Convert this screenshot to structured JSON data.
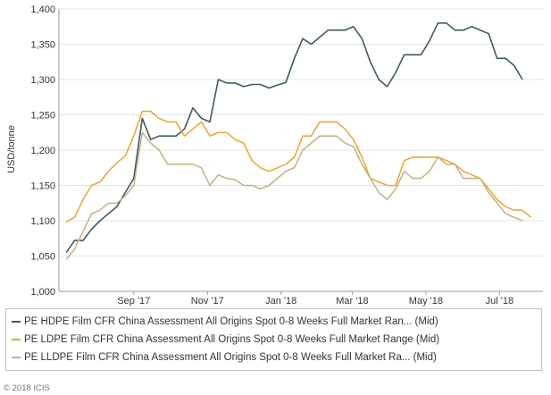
{
  "chart_data": {
    "type": "line",
    "ylabel": "USD/tonne",
    "ylim": [
      1000,
      1400
    ],
    "yticks": [
      1000,
      1050,
      1100,
      1150,
      1200,
      1250,
      1300,
      1350,
      1400
    ],
    "ytick_labels": [
      "1,000",
      "1,050",
      "1,100",
      "1,150",
      "1,200",
      "1,250",
      "1,300",
      "1,350",
      "1,400"
    ],
    "xlim": [
      "2017-07-01",
      "2018-08-06"
    ],
    "xticks": [
      {
        "date": "2017-09-01",
        "label": "Sep '17"
      },
      {
        "date": "2017-11-01",
        "label": "Nov '17"
      },
      {
        "date": "2018-01-01",
        "label": "Jan '18"
      },
      {
        "date": "2018-03-01",
        "label": "Mar '18"
      },
      {
        "date": "2018-05-01",
        "label": "May '18"
      },
      {
        "date": "2018-07-01",
        "label": "Jul '18"
      }
    ],
    "grid": "horizontal",
    "legend_position": "bottom",
    "x": [
      "2017-07-07",
      "2017-07-14",
      "2017-07-21",
      "2017-07-28",
      "2017-08-04",
      "2017-08-11",
      "2017-08-18",
      "2017-08-25",
      "2017-09-01",
      "2017-09-08",
      "2017-09-15",
      "2017-09-22",
      "2017-09-29",
      "2017-10-06",
      "2017-10-13",
      "2017-10-20",
      "2017-10-27",
      "2017-11-03",
      "2017-11-10",
      "2017-11-17",
      "2017-11-24",
      "2017-12-01",
      "2017-12-08",
      "2017-12-15",
      "2017-12-22",
      "2017-12-29",
      "2018-01-05",
      "2018-01-12",
      "2018-01-19",
      "2018-01-26",
      "2018-02-02",
      "2018-02-09",
      "2018-02-16",
      "2018-02-23",
      "2018-03-02",
      "2018-03-09",
      "2018-03-16",
      "2018-03-23",
      "2018-03-30",
      "2018-04-06",
      "2018-04-13",
      "2018-04-20",
      "2018-04-27",
      "2018-05-04",
      "2018-05-11",
      "2018-05-18",
      "2018-05-25",
      "2018-06-01",
      "2018-06-08",
      "2018-06-15",
      "2018-06-22",
      "2018-06-29",
      "2018-07-06",
      "2018-07-13",
      "2018-07-20",
      "2018-07-27"
    ],
    "series": [
      {
        "name": "PE HDPE Film CFR China Assessment All Origins Spot 0-8 Weeks Full Market Ran... (Mid)",
        "color": "#3d5a63",
        "values": [
          1055,
          1072,
          1072,
          1088,
          1100,
          1110,
          1120,
          1140,
          1160,
          1245,
          1215,
          1220,
          1220,
          1220,
          1230,
          1260,
          1245,
          1240,
          1300,
          1295,
          1295,
          1290,
          1293,
          1293,
          1288,
          1292,
          1296,
          1330,
          1358,
          1350,
          1360,
          1370,
          1370,
          1370,
          1375,
          1358,
          1325,
          1300,
          1290,
          1310,
          1335,
          1335,
          1335,
          1355,
          1380,
          1380,
          1370,
          1370,
          1375,
          1370,
          1365,
          1330,
          1330,
          1320,
          1300,
          null
        ]
      },
      {
        "name": "PE LDPE Film CFR China Assessment All Origins Spot 0-8 Weeks Full Market Range (Mid)",
        "color": "#e8a93b",
        "values": [
          1098,
          1105,
          1130,
          1150,
          1155,
          1170,
          1182,
          1192,
          1220,
          1255,
          1255,
          1245,
          1240,
          1240,
          1220,
          1230,
          1240,
          1220,
          1225,
          1225,
          1215,
          1210,
          1185,
          1175,
          1170,
          1175,
          1180,
          1190,
          1220,
          1220,
          1240,
          1240,
          1240,
          1230,
          1215,
          1190,
          1160,
          1155,
          1150,
          1150,
          1185,
          1190,
          1190,
          1190,
          1190,
          1185,
          1180,
          1170,
          1165,
          1160,
          1145,
          1130,
          1120,
          1115,
          1115,
          1105
        ]
      },
      {
        "name": "PE LLDPE Film CFR China Assessment All Origins Spot 0-8 Weeks Full Market Ra... (Mid)",
        "color": "#c8b48a",
        "values": [
          1045,
          1060,
          1085,
          1110,
          1115,
          1125,
          1125,
          1135,
          1150,
          1225,
          1210,
          1200,
          1180,
          1180,
          1180,
          1180,
          1175,
          1150,
          1165,
          1160,
          1158,
          1150,
          1150,
          1145,
          1150,
          1160,
          1170,
          1175,
          1200,
          1210,
          1220,
          1220,
          1220,
          1210,
          1205,
          1180,
          1160,
          1140,
          1130,
          1145,
          1170,
          1160,
          1160,
          1170,
          1190,
          1180,
          1180,
          1160,
          1160,
          1160,
          1140,
          1125,
          1110,
          1105,
          1100,
          null
        ]
      }
    ]
  },
  "footer": {
    "copyright": "© 2018 ICIS"
  }
}
